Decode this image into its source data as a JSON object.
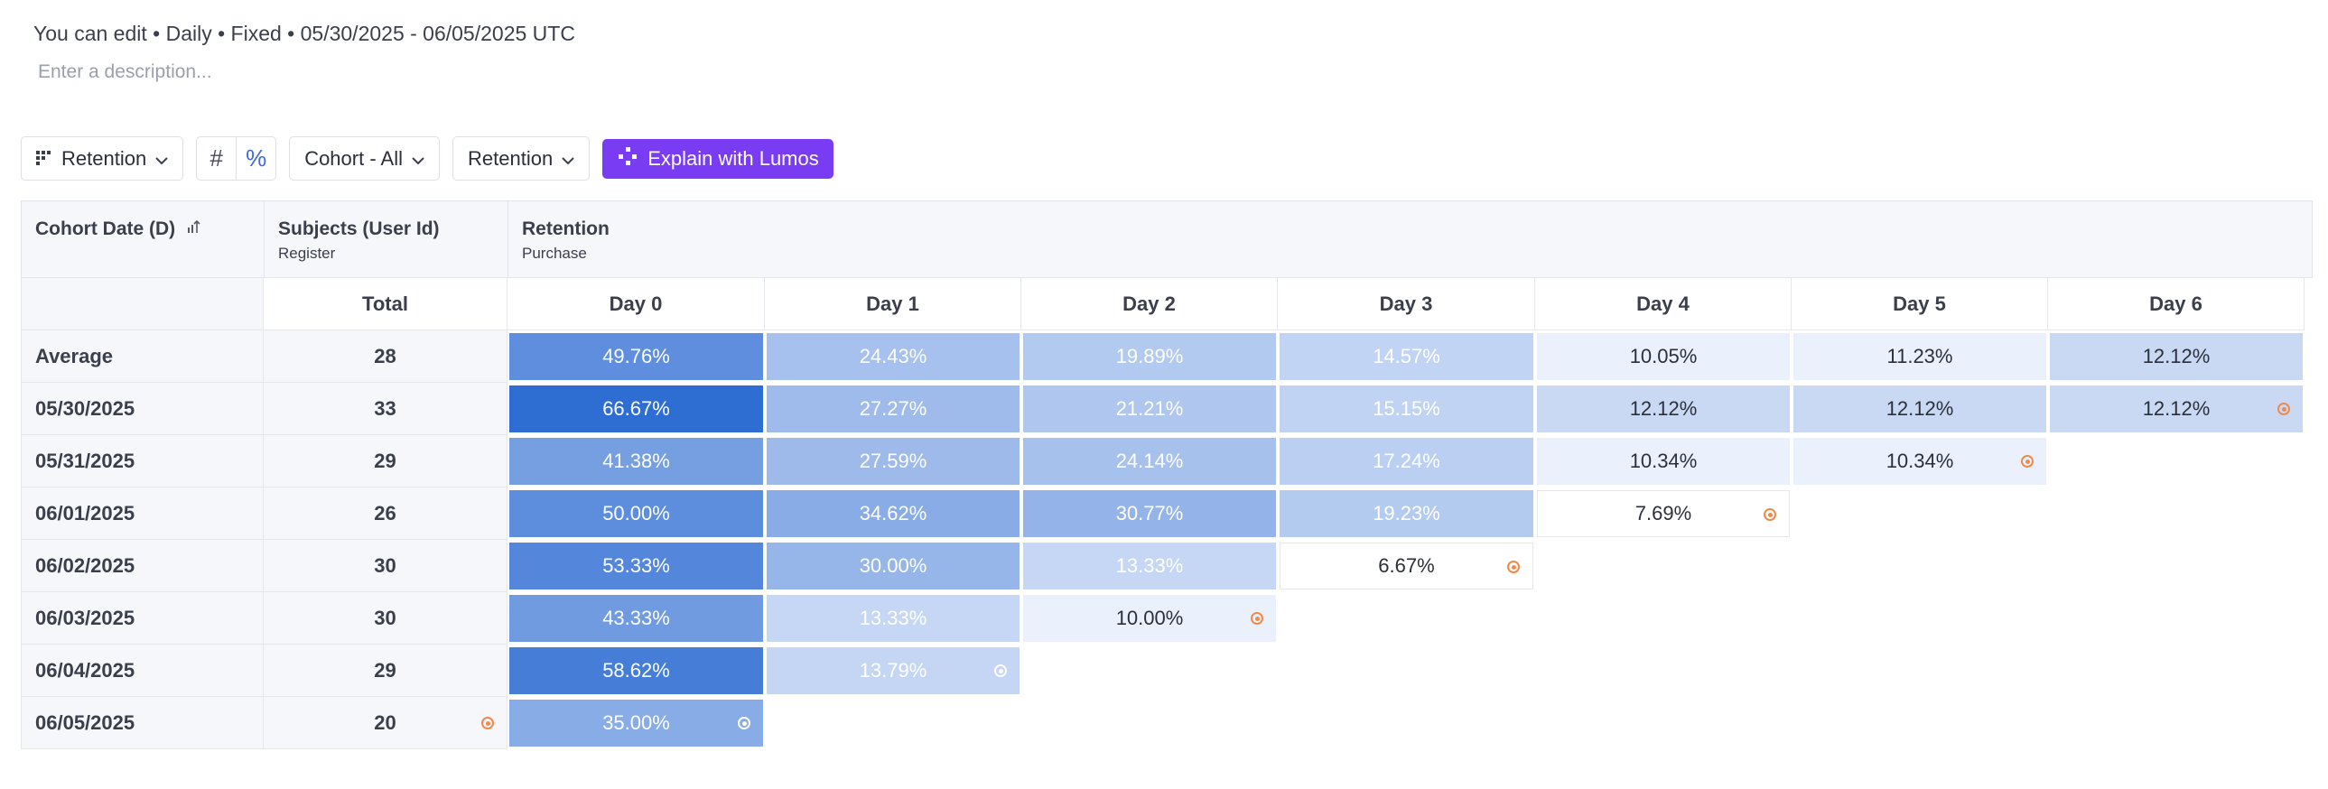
{
  "header": {
    "meta": "You can edit • Daily • Fixed • 05/30/2025 - 06/05/2025 UTC",
    "description_placeholder": "Enter a description..."
  },
  "toolbar": {
    "view_label": "Retention",
    "number_mode": "#",
    "percent_mode": "%",
    "cohort_label": "Cohort - All",
    "metric_label": "Retention",
    "lumos_label": "Explain with Lumos"
  },
  "table": {
    "cohort_header": "Cohort Date (D)",
    "subjects_header": "Subjects (User Id)",
    "subjects_sub": "Register",
    "retention_header": "Retention",
    "retention_sub": "Purchase",
    "total_label": "Total",
    "days": [
      "Day 0",
      "Day 1",
      "Day 2",
      "Day 3",
      "Day 4",
      "Day 5",
      "Day 6"
    ],
    "rows": [
      {
        "label": "Average",
        "total": "28",
        "values": [
          "49.76%",
          "24.43%",
          "19.89%",
          "14.57%",
          "10.05%",
          "11.23%",
          "12.12%"
        ],
        "pct": [
          49.76,
          24.43,
          19.89,
          14.57,
          10.05,
          11.23,
          12.12
        ]
      },
      {
        "label": "05/30/2025",
        "total": "33",
        "values": [
          "66.67%",
          "27.27%",
          "21.21%",
          "15.15%",
          "12.12%",
          "12.12%",
          "12.12%"
        ],
        "pct": [
          66.67,
          27.27,
          21.21,
          15.15,
          12.12,
          12.12,
          12.12
        ]
      },
      {
        "label": "05/31/2025",
        "total": "29",
        "values": [
          "41.38%",
          "27.59%",
          "24.14%",
          "17.24%",
          "10.34%",
          "10.34%"
        ],
        "pct": [
          41.38,
          27.59,
          24.14,
          17.24,
          10.34,
          10.34
        ]
      },
      {
        "label": "06/01/2025",
        "total": "26",
        "values": [
          "50.00%",
          "34.62%",
          "30.77%",
          "19.23%",
          "7.69%"
        ],
        "pct": [
          50.0,
          34.62,
          30.77,
          19.23,
          7.69
        ]
      },
      {
        "label": "06/02/2025",
        "total": "30",
        "values": [
          "53.33%",
          "30.00%",
          "13.33%",
          "6.67%"
        ],
        "pct": [
          53.33,
          30.0,
          13.33,
          6.67
        ]
      },
      {
        "label": "06/03/2025",
        "total": "30",
        "values": [
          "43.33%",
          "13.33%",
          "10.00%"
        ],
        "pct": [
          43.33,
          13.33,
          10.0
        ]
      },
      {
        "label": "06/04/2025",
        "total": "29",
        "values": [
          "58.62%",
          "13.79%"
        ],
        "pct": [
          58.62,
          13.79
        ]
      },
      {
        "label": "06/05/2025",
        "total": "20",
        "values": [
          "35.00%"
        ],
        "pct": [
          35.0
        ]
      }
    ]
  },
  "colors": {
    "incomplete_marker": "#f08a4b",
    "lumos_button": "#7a3cf3"
  }
}
